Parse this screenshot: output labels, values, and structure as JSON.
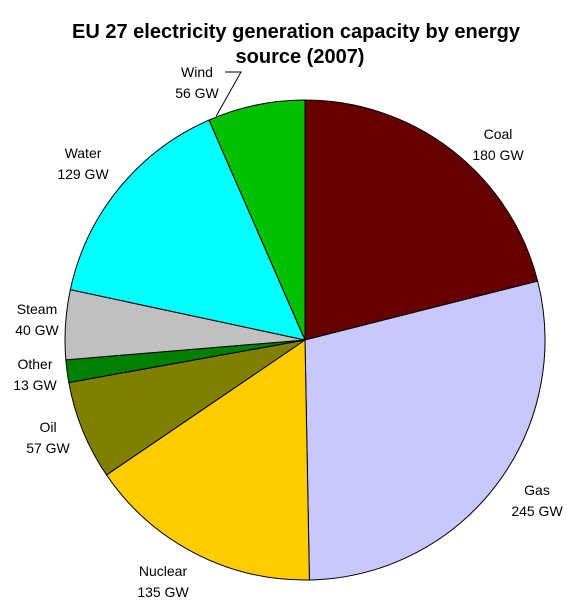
{
  "chart_data": {
    "type": "pie",
    "title": "EU 27 electricity generation capacity by energy source (2007)",
    "title_lines": [
      "EU 27 electricity generation capacity by energy",
      "source (2007)"
    ],
    "unit": "GW",
    "slices": [
      {
        "name": "Coal",
        "value": 180,
        "value_label": "180 GW",
        "color": "#660000"
      },
      {
        "name": "Gas",
        "value": 245,
        "value_label": "245 GW",
        "color": "#c8c8ff"
      },
      {
        "name": "Nuclear",
        "value": 135,
        "value_label": "135 GW",
        "color": "#ffcc00"
      },
      {
        "name": "Oil",
        "value": 57,
        "value_label": "57 GW",
        "color": "#7f7f00"
      },
      {
        "name": "Other",
        "value": 13,
        "value_label": "13 GW",
        "color": "#008000"
      },
      {
        "name": "Steam",
        "value": 40,
        "value_label": "40 GW",
        "color": "#c0c0c0"
      },
      {
        "name": "Water",
        "value": 129,
        "value_label": "129 GW",
        "color": "#00ffff"
      },
      {
        "name": "Wind",
        "value": 56,
        "value_label": "56 GW",
        "color": "#00c000"
      }
    ],
    "start_angle": "12 o'clock",
    "direction": "clockwise",
    "legend": "none"
  }
}
